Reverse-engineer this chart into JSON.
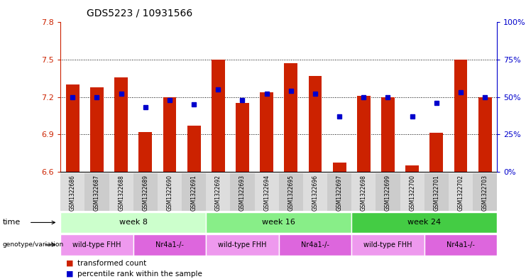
{
  "title": "GDS5223 / 10931566",
  "samples": [
    "GSM1322686",
    "GSM1322687",
    "GSM1322688",
    "GSM1322689",
    "GSM1322690",
    "GSM1322691",
    "GSM1322692",
    "GSM1322693",
    "GSM1322694",
    "GSM1322695",
    "GSM1322696",
    "GSM1322697",
    "GSM1322698",
    "GSM1322699",
    "GSM1322700",
    "GSM1322701",
    "GSM1322702",
    "GSM1322703"
  ],
  "bar_values": [
    7.3,
    7.28,
    7.36,
    6.92,
    7.2,
    6.97,
    7.5,
    7.15,
    7.24,
    7.47,
    7.37,
    6.67,
    7.21,
    7.2,
    6.65,
    6.91,
    7.5,
    7.2
  ],
  "percentile_values": [
    50,
    50,
    52,
    43,
    48,
    45,
    55,
    48,
    52,
    54,
    52,
    37,
    50,
    50,
    37,
    46,
    53,
    50
  ],
  "bar_color": "#cc2200",
  "dot_color": "#0000cc",
  "ylim_left": [
    6.6,
    7.8
  ],
  "ylim_right": [
    0,
    100
  ],
  "yticks_left": [
    6.6,
    6.9,
    7.2,
    7.5,
    7.8
  ],
  "yticks_right": [
    0,
    25,
    50,
    75,
    100
  ],
  "grid_yticks": [
    7.5,
    7.2,
    6.9
  ],
  "time_labels": [
    {
      "label": "week 8",
      "start": 0,
      "end": 6,
      "color": "#ccffcc"
    },
    {
      "label": "week 16",
      "start": 6,
      "end": 12,
      "color": "#88ee88"
    },
    {
      "label": "week 24",
      "start": 12,
      "end": 18,
      "color": "#44cc44"
    }
  ],
  "genotype_labels": [
    {
      "label": "wild-type FHH",
      "start": 0,
      "end": 3,
      "color": "#ee99ee"
    },
    {
      "label": "Nr4a1-/-",
      "start": 3,
      "end": 6,
      "color": "#dd66dd"
    },
    {
      "label": "wild-type FHH",
      "start": 6,
      "end": 9,
      "color": "#ee99ee"
    },
    {
      "label": "Nr4a1-/-",
      "start": 9,
      "end": 12,
      "color": "#dd66dd"
    },
    {
      "label": "wild-type FHH",
      "start": 12,
      "end": 15,
      "color": "#ee99ee"
    },
    {
      "label": "Nr4a1-/-",
      "start": 15,
      "end": 18,
      "color": "#dd66dd"
    }
  ],
  "legend_items": [
    {
      "label": "transformed count",
      "color": "#cc2200"
    },
    {
      "label": "percentile rank within the sample",
      "color": "#0000cc"
    }
  ],
  "bar_width": 0.55,
  "left_tick_color": "#cc2200",
  "right_tick_color": "#0000cc",
  "xtick_bg_colors": [
    "#dddddd",
    "#cccccc"
  ]
}
